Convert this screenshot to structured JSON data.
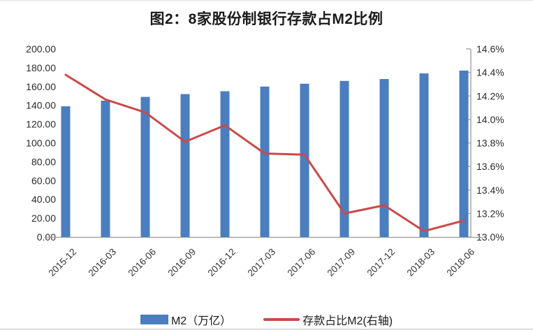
{
  "figure": {
    "title": "图2：8家股份制银行存款占M2比例"
  },
  "chart_data": {
    "type": "bar",
    "subtype": "bar+line dual-axis",
    "title": "图2：8家股份制银行存款占M2比例",
    "categories": [
      "2015-12",
      "2016-03",
      "2016-06",
      "2016-09",
      "2016-12",
      "2017-03",
      "2017-06",
      "2017-09",
      "2017-12",
      "2018-03",
      "2018-06"
    ],
    "series": [
      {
        "name": "M2（万亿）",
        "type": "bar",
        "axis": "left",
        "color": "#4A7EBE",
        "values": [
          139,
          145,
          149,
          152,
          155,
          160,
          163,
          166,
          168,
          174,
          177
        ]
      },
      {
        "name": "存款占比M2(右轴)",
        "type": "line",
        "axis": "right",
        "color": "#CB4A4A",
        "values": [
          14.38,
          14.17,
          14.06,
          13.81,
          13.95,
          13.71,
          13.7,
          13.2,
          13.27,
          13.05,
          13.14
        ]
      }
    ],
    "left_axis": {
      "min": 0,
      "max": 200,
      "step": 20,
      "tick_labels": [
        "0.00",
        "20.00",
        "40.00",
        "60.00",
        "80.00",
        "100.00",
        "120.00",
        "140.00",
        "160.00",
        "180.00",
        "200.00"
      ]
    },
    "right_axis": {
      "min": 13.0,
      "max": 14.6,
      "step": 0.2,
      "tick_labels": [
        "13.0%",
        "13.2%",
        "13.4%",
        "13.6%",
        "13.8%",
        "14.0%",
        "14.2%",
        "14.4%",
        "14.6%"
      ]
    },
    "legend_position": "bottom",
    "grid": false,
    "x_label_rotation": -45
  },
  "style": {
    "axis_line_color": "#A3A3A3",
    "axis_text_color": "#2B2B2B",
    "x_text_color": "#333333"
  }
}
